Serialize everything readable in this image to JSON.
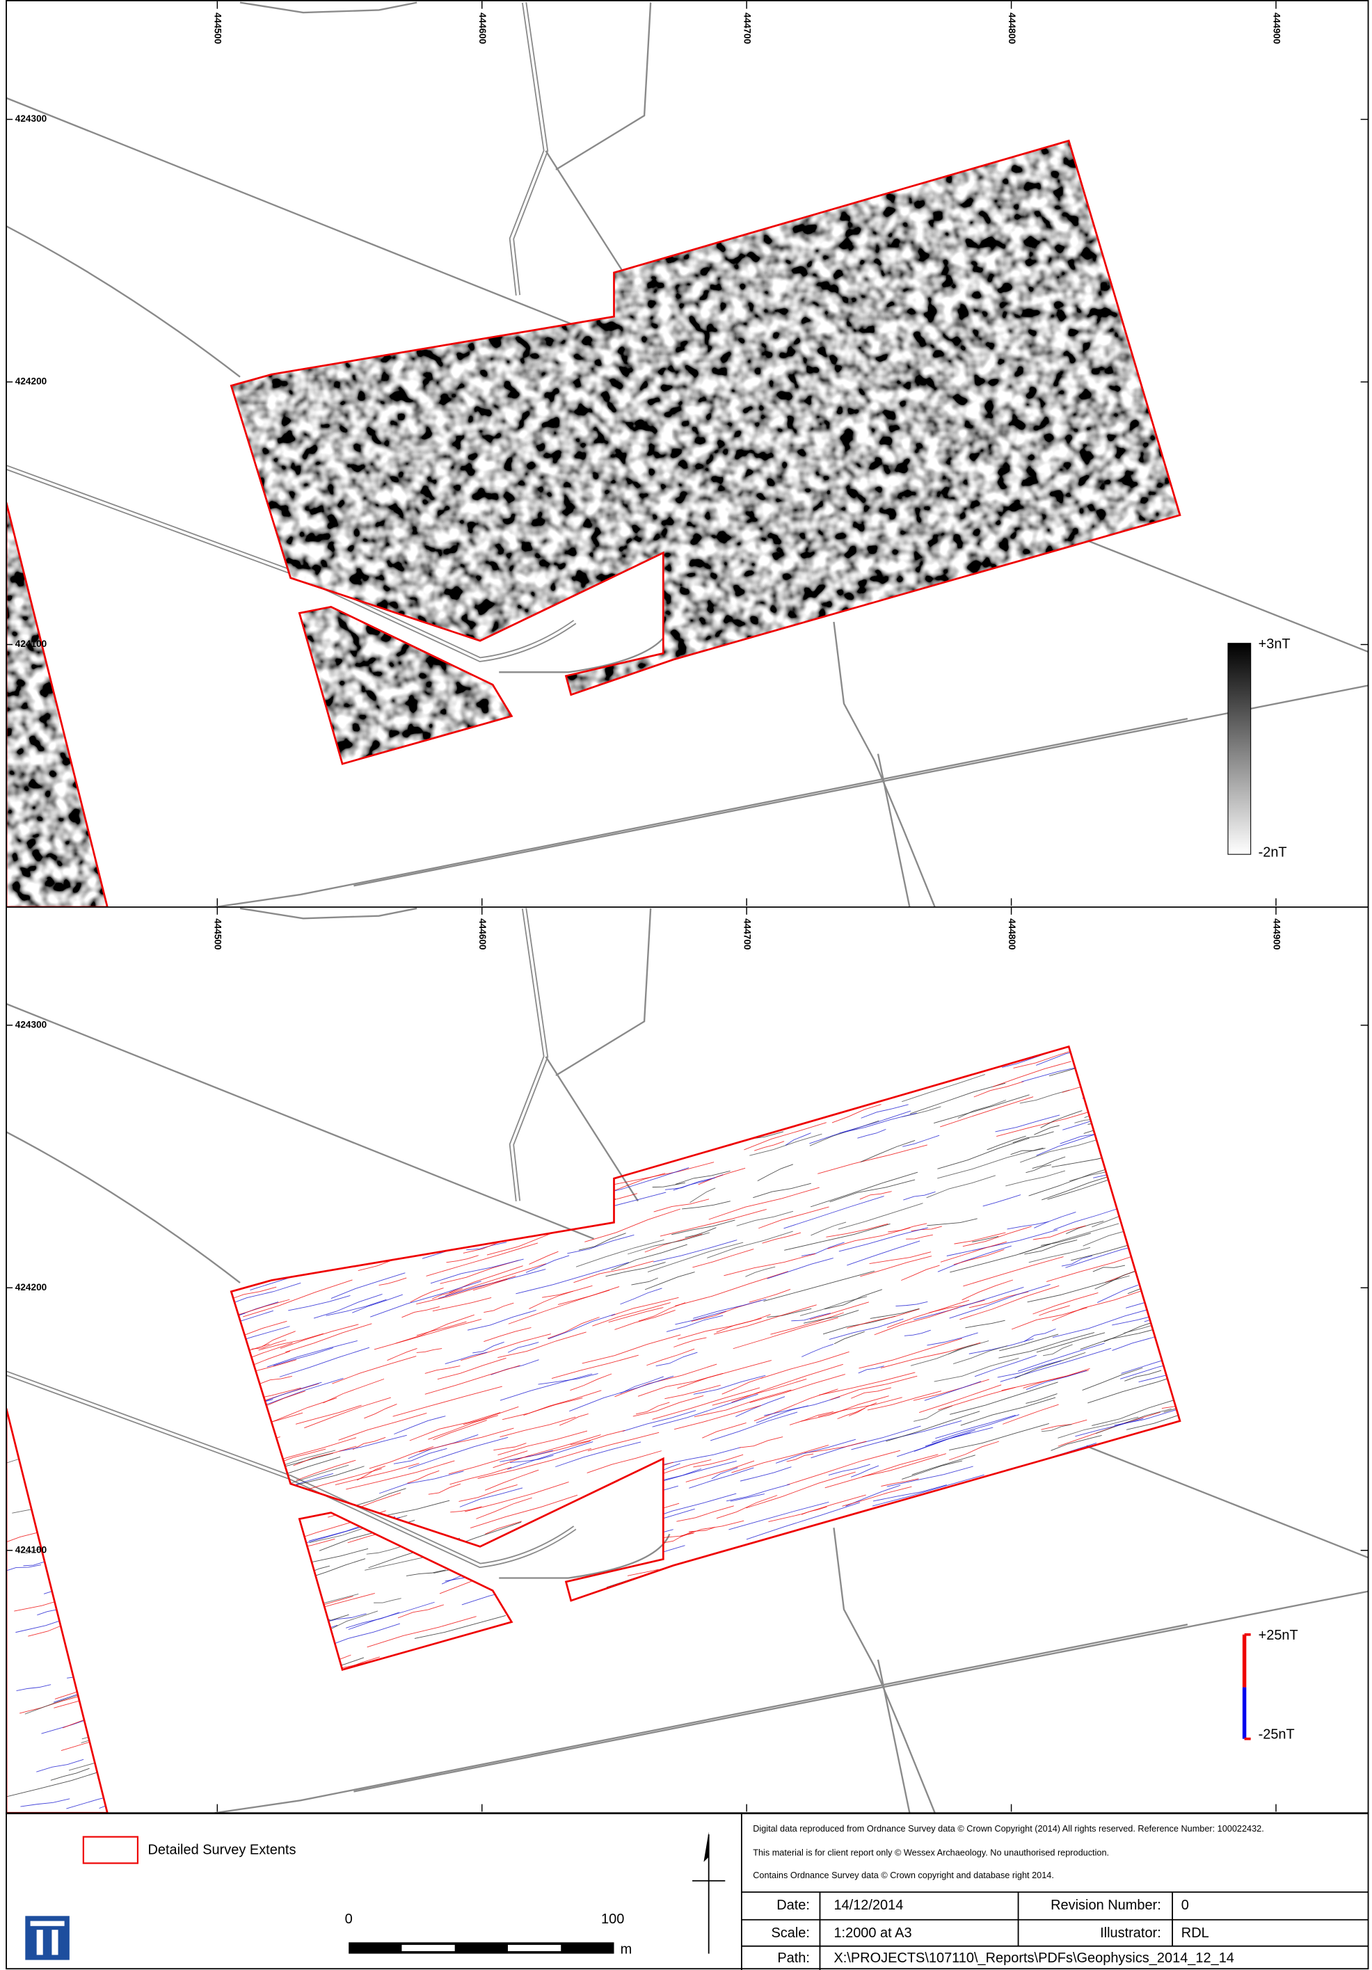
{
  "panels": [
    {
      "eastings": [
        444500,
        444600,
        444700,
        444800,
        444900
      ],
      "northings": [
        424300,
        424200,
        424100
      ],
      "legend": {
        "max": "+3nT",
        "min": "-2nT"
      }
    },
    {
      "eastings": [
        444500,
        444600,
        444700,
        444800,
        444900
      ],
      "northings": [
        424300,
        424200,
        424100
      ],
      "legend": {
        "max": "+25nT",
        "min": "-25nT"
      }
    }
  ],
  "footer": {
    "legend_label": "Detailed Survey Extents",
    "scale": {
      "start": 0,
      "end": 100,
      "unit": "m"
    },
    "notes": [
      "Digital data reproduced from Ordnance Survey data © Crown Copyright (2014) All rights reserved. Reference Number: 100022432.",
      "This material is for client report only © Wessex Archaeology. No unauthorised reproduction.",
      "Contains Ordnance Survey data © Crown copyright and database right 2014."
    ],
    "table": {
      "rows": [
        [
          "Date:",
          "14/12/2014",
          "Revision Number:",
          "0"
        ],
        [
          "Scale:",
          "1:2000 at A3",
          "Illustrator:",
          "RDL"
        ],
        [
          "Path:",
          "X:\\PROJECTS\\107110\\_Reports\\PDFs\\Geophysics_2014_12_14"
        ]
      ]
    }
  }
}
